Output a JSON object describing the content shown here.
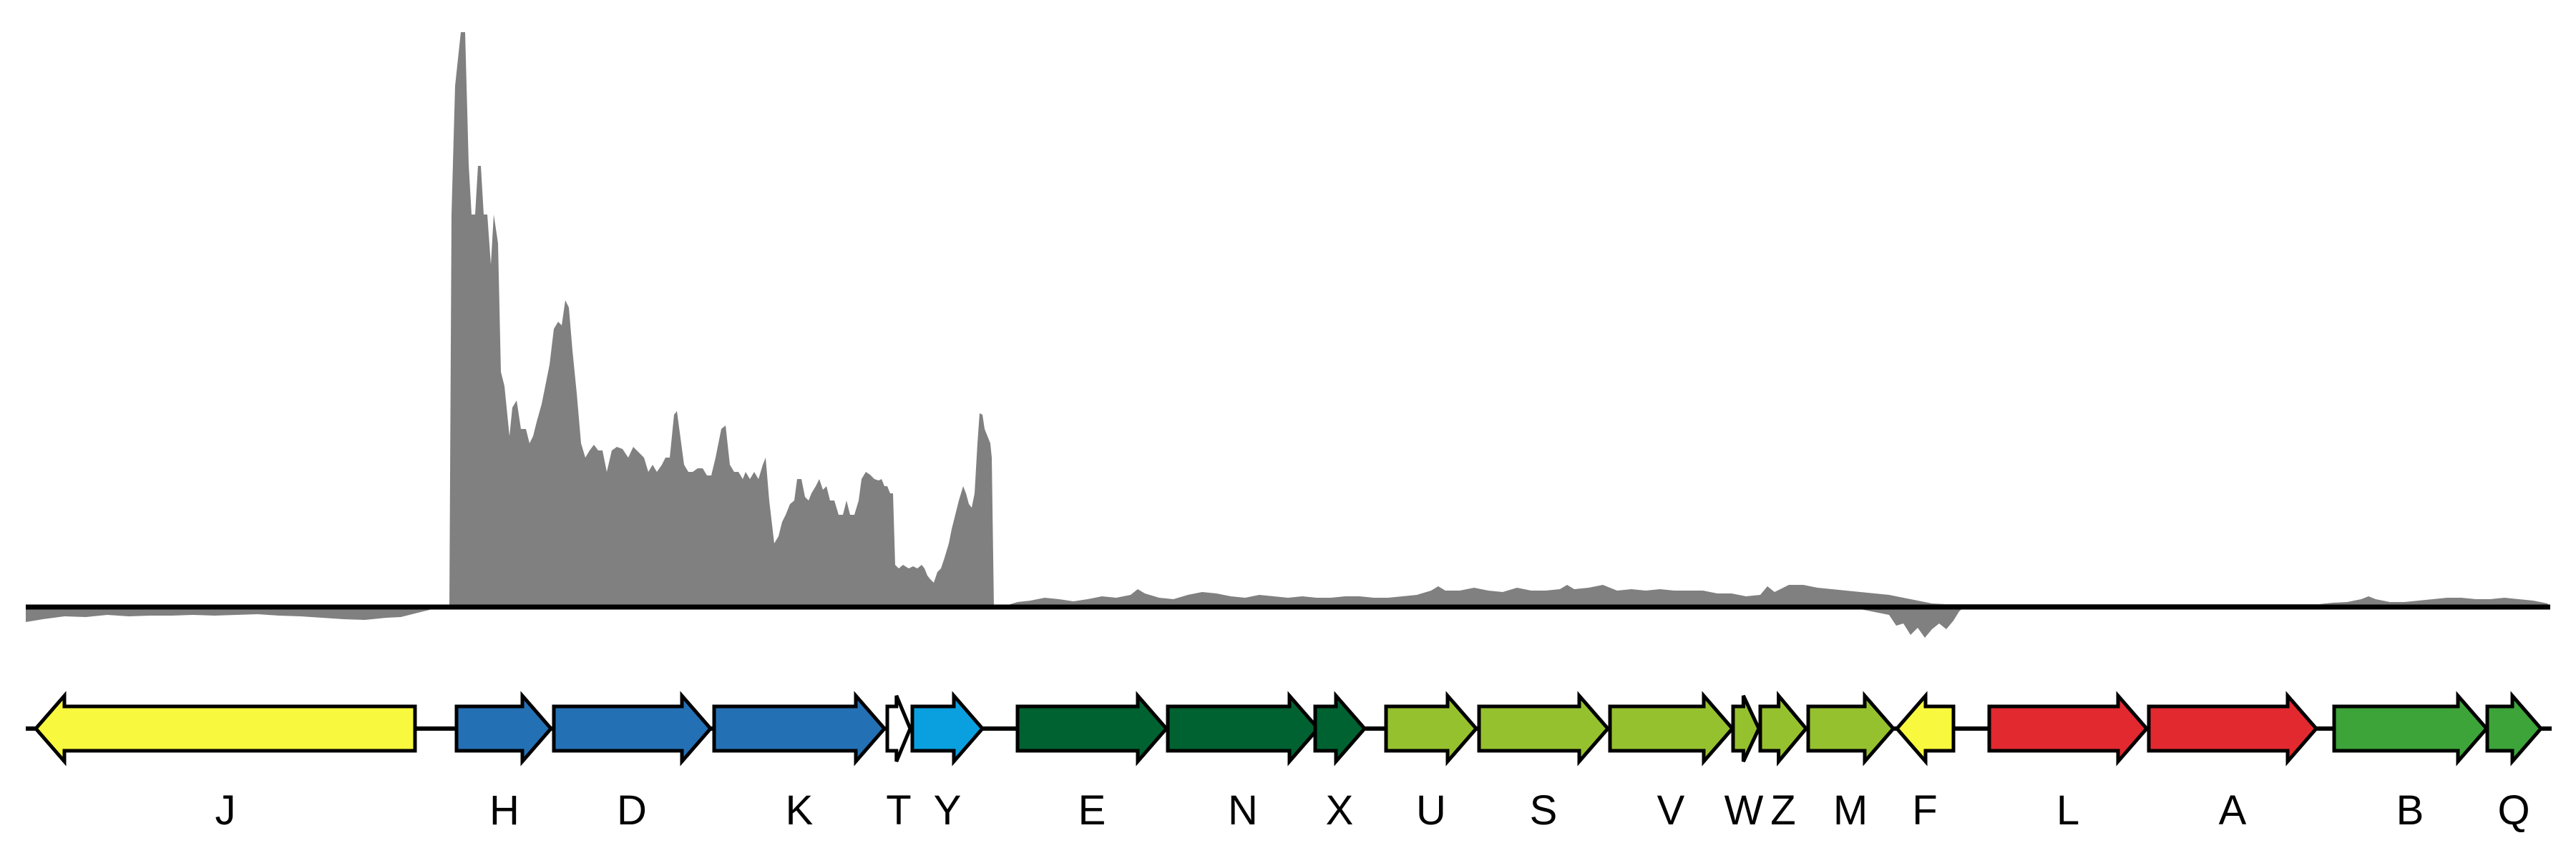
{
  "colors": {
    "coverage": "#808080",
    "axis": "#000000",
    "gene_outline": "#000000",
    "yellow": "#f8f83e",
    "blue": "#2470b4",
    "white": "#ffffff",
    "cyan": "#0aa0e0",
    "dark_green": "#006131",
    "light_green": "#96c12e",
    "red": "#e2292f",
    "green": "#3da43a"
  },
  "coverage": {
    "description": "read coverage track above baseline (positive) and below baseline (negative)",
    "relative_peak_position": "upstream of gene H"
  },
  "genes": [
    {
      "label": "J",
      "strand": "-",
      "color": "yellow"
    },
    {
      "label": "H",
      "strand": "+",
      "color": "blue"
    },
    {
      "label": "D",
      "strand": "+",
      "color": "blue"
    },
    {
      "label": "K",
      "strand": "+",
      "color": "blue"
    },
    {
      "label": "T",
      "strand": "+",
      "color": "white"
    },
    {
      "label": "Y",
      "strand": "+",
      "color": "cyan"
    },
    {
      "label": "E",
      "strand": "+",
      "color": "dark_green"
    },
    {
      "label": "N",
      "strand": "+",
      "color": "dark_green"
    },
    {
      "label": "X",
      "strand": "+",
      "color": "dark_green"
    },
    {
      "label": "U",
      "strand": "+",
      "color": "light_green"
    },
    {
      "label": "S",
      "strand": "+",
      "color": "light_green"
    },
    {
      "label": "V",
      "strand": "+",
      "color": "light_green"
    },
    {
      "label": "W",
      "strand": "+",
      "color": "light_green"
    },
    {
      "label": "Z",
      "strand": "+",
      "color": "light_green"
    },
    {
      "label": "M",
      "strand": "+",
      "color": "light_green"
    },
    {
      "label": "F",
      "strand": "-",
      "color": "yellow"
    },
    {
      "label": "L",
      "strand": "+",
      "color": "red"
    },
    {
      "label": "A",
      "strand": "+",
      "color": "red"
    },
    {
      "label": "B",
      "strand": "+",
      "color": "green"
    },
    {
      "label": "Q",
      "strand": "+",
      "color": "green"
    }
  ]
}
